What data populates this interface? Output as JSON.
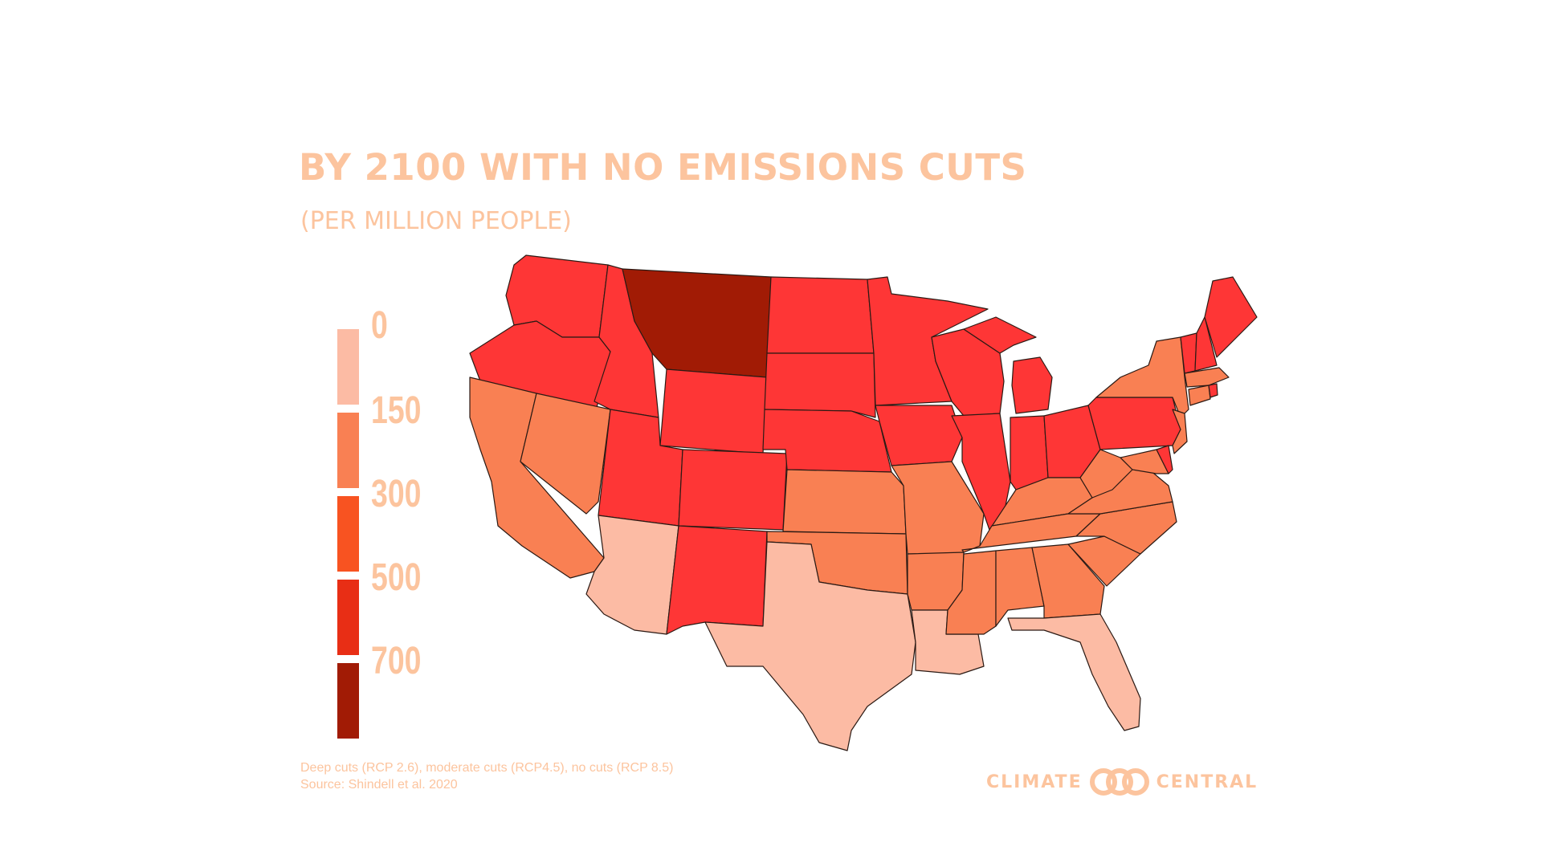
{
  "header": {
    "title": "BY 2100 WITH NO EMISSIONS CUTS",
    "subtitle": "(PER MILLION PEOPLE)"
  },
  "legend": {
    "ticks": [
      "0",
      "150",
      "300",
      "500",
      "700"
    ],
    "colors": [
      "#fcbba4",
      "#f98053",
      "#f85321",
      "#e82e15",
      "#a11b05"
    ]
  },
  "map_colors": {
    "bin_0_150": "#fcbba4",
    "bin_150_300": "#f98053",
    "bin_500_700": "#fe3636",
    "bin_700_plus": "#a11b05"
  },
  "footer": {
    "note": "Deep cuts (RCP 2.6), moderate cuts (RCP4.5), no cuts (RCP 8.5)",
    "source": "Source: Shindell et al. 2020"
  },
  "logo": {
    "left": "CLIMATE",
    "right": "CENTRAL"
  }
}
